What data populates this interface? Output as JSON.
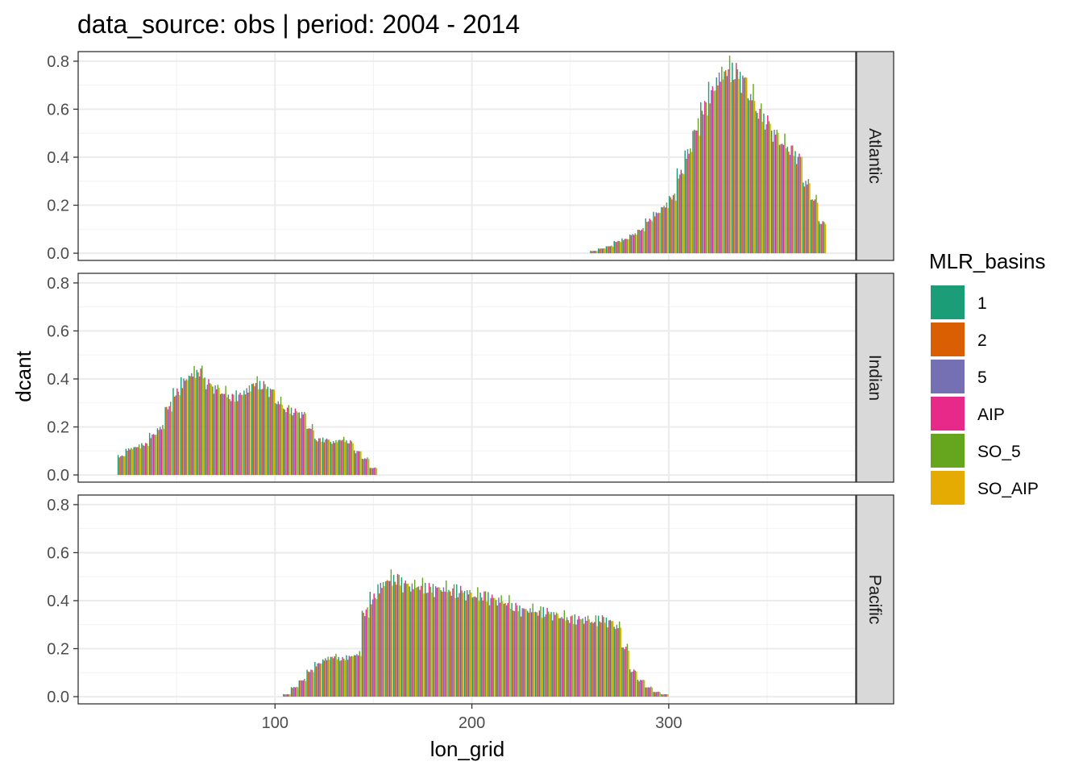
{
  "chart_data": {
    "type": "bar",
    "title": "data_source: obs | period: 2004 - 2014",
    "xlabel": "lon_grid",
    "ylabel": "dcant",
    "xlim": [
      0,
      395
    ],
    "ylim": [
      -0.03,
      0.84
    ],
    "x_ticks": [
      100,
      200,
      300
    ],
    "y_ticks": [
      0.0,
      0.2,
      0.4,
      0.6,
      0.8
    ],
    "grid": true,
    "legend": {
      "title": "MLR_basins",
      "position": "right",
      "entries": [
        {
          "label": "1",
          "color": "#1B9E77"
        },
        {
          "label": "2",
          "color": "#D95F02"
        },
        {
          "label": "5",
          "color": "#7570B3"
        },
        {
          "label": "AIP",
          "color": "#E7298A"
        },
        {
          "label": "SO_5",
          "color": "#66A61E"
        },
        {
          "label": "SO_AIP",
          "color": "#E6AB02"
        }
      ]
    },
    "facets": [
      {
        "label": "Atlantic",
        "x": [
          262,
          266,
          270,
          274,
          278,
          282,
          286,
          290,
          294,
          298,
          302,
          306,
          310,
          314,
          318,
          322,
          326,
          330,
          334,
          338,
          342,
          346,
          350,
          354,
          358,
          362,
          366,
          370,
          374,
          378
        ],
        "values": [
          0.01,
          0.02,
          0.03,
          0.05,
          0.06,
          0.08,
          0.1,
          0.14,
          0.17,
          0.2,
          0.24,
          0.34,
          0.43,
          0.53,
          0.62,
          0.69,
          0.75,
          0.78,
          0.77,
          0.74,
          0.67,
          0.6,
          0.56,
          0.51,
          0.47,
          0.44,
          0.41,
          0.3,
          0.23,
          0.13
        ]
      },
      {
        "label": "Indian",
        "x": [
          22,
          26,
          30,
          34,
          38,
          42,
          46,
          50,
          54,
          58,
          62,
          66,
          70,
          74,
          78,
          82,
          86,
          90,
          94,
          98,
          102,
          106,
          110,
          114,
          118,
          122,
          126,
          130,
          134,
          138,
          142,
          146,
          150
        ],
        "values": [
          0.08,
          0.11,
          0.12,
          0.13,
          0.17,
          0.2,
          0.29,
          0.35,
          0.4,
          0.43,
          0.44,
          0.39,
          0.37,
          0.35,
          0.33,
          0.34,
          0.36,
          0.39,
          0.38,
          0.36,
          0.31,
          0.28,
          0.27,
          0.26,
          0.2,
          0.15,
          0.15,
          0.14,
          0.15,
          0.14,
          0.1,
          0.07,
          0.03
        ]
      },
      {
        "label": "Pacific",
        "x": [
          106,
          110,
          114,
          118,
          122,
          126,
          130,
          134,
          138,
          142,
          146,
          150,
          154,
          158,
          162,
          166,
          170,
          174,
          178,
          182,
          186,
          190,
          194,
          198,
          202,
          206,
          210,
          214,
          218,
          222,
          226,
          230,
          234,
          238,
          242,
          246,
          250,
          254,
          258,
          262,
          266,
          270,
          274,
          278,
          282,
          286,
          290,
          294,
          298
        ],
        "values": [
          0.01,
          0.04,
          0.07,
          0.11,
          0.14,
          0.16,
          0.17,
          0.16,
          0.17,
          0.18,
          0.36,
          0.42,
          0.47,
          0.5,
          0.5,
          0.48,
          0.47,
          0.47,
          0.46,
          0.46,
          0.46,
          0.45,
          0.45,
          0.44,
          0.43,
          0.43,
          0.42,
          0.41,
          0.4,
          0.38,
          0.37,
          0.37,
          0.36,
          0.36,
          0.35,
          0.34,
          0.33,
          0.33,
          0.33,
          0.32,
          0.33,
          0.32,
          0.3,
          0.21,
          0.11,
          0.07,
          0.04,
          0.02,
          0.01
        ]
      }
    ]
  }
}
